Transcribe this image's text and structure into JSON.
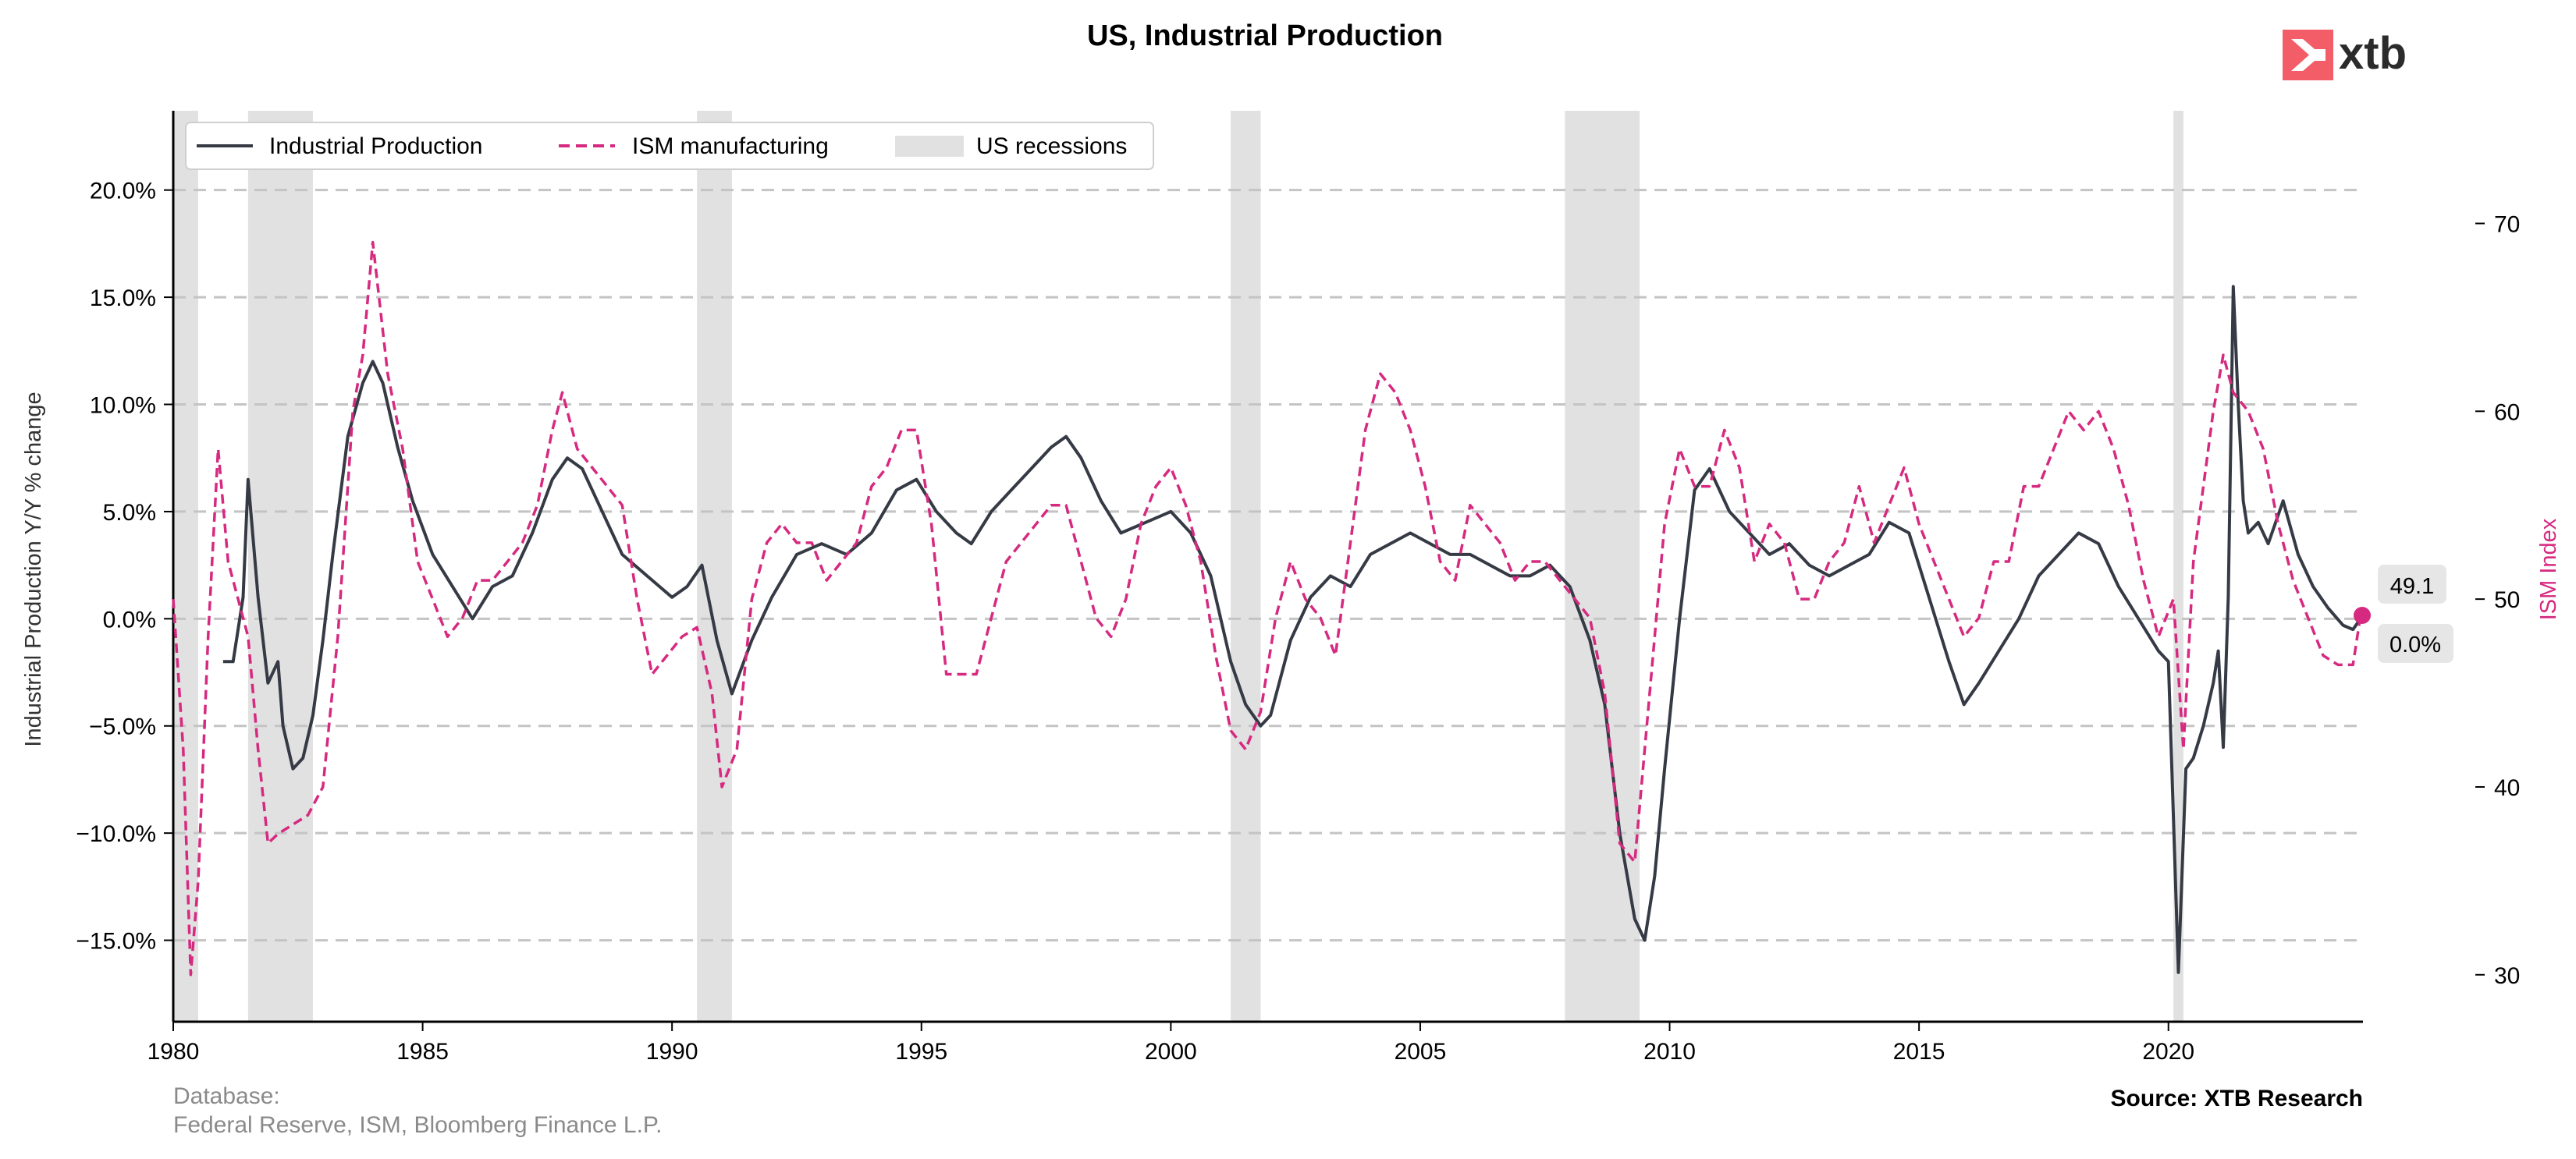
{
  "brand": {
    "logo_text": "xtb",
    "color": "#f25d67"
  },
  "colors": {
    "industrial": "#353a45",
    "ism": "#d62a80",
    "recession": "#e1e1e1",
    "grid": "#c4c4c4",
    "badge": "#e6e6e6"
  },
  "footer": {
    "database_label": "Database:",
    "database_sources": "Federal Reserve, ISM, Bloomberg Finance L.P.",
    "source": "Source: XTB Research"
  },
  "badges": {
    "ism_last": "49.1",
    "ip_last": "0.0%"
  },
  "chart_data": {
    "type": "line",
    "title": "US, Industrial Production",
    "ylabel_left": "Industrial Production Y/Y % change",
    "ylabel_right": "ISM Index",
    "xlim": [
      1980.0,
      2023.9
    ],
    "ylim_left": [
      -18.8,
      23.7
    ],
    "ylim_right": [
      27.5,
      76.0
    ],
    "x_ticks": [
      1980,
      1985,
      1990,
      1995,
      2000,
      2005,
      2010,
      2015,
      2020
    ],
    "x_tick_labels": [
      "1980",
      "1985",
      "1990",
      "1995",
      "2000",
      "2005",
      "2010",
      "2015",
      "2020"
    ],
    "y_left_ticks": [
      20,
      15,
      10,
      5,
      0,
      -5,
      -10,
      -15
    ],
    "y_left_tick_labels": [
      "20.0%",
      "15.0%",
      "10.0%",
      "5.0%",
      "0.0%",
      "−5.0%",
      "−10.0%",
      "−15.0%"
    ],
    "y_right_ticks": [
      70,
      60,
      50,
      40,
      30
    ],
    "y_right_tick_labels": [
      "70",
      "60",
      "50",
      "40",
      "30"
    ],
    "grid": "horizontal dashed",
    "legend_position": "top-left",
    "legend": [
      "Industrial Production",
      "ISM manufacturing",
      "US recessions"
    ],
    "recessions": [
      [
        1980.0,
        1980.5
      ],
      [
        1981.5,
        1982.8
      ],
      [
        1990.5,
        1991.2
      ],
      [
        2001.2,
        2001.8
      ],
      [
        2007.9,
        2009.4
      ],
      [
        2020.1,
        2020.3
      ]
    ],
    "series": [
      {
        "name": "Industrial Production",
        "axis": "left",
        "x": [
          1981.0,
          1981.2,
          1981.4,
          1981.5,
          1981.7,
          1981.9,
          1982.1,
          1982.2,
          1982.4,
          1982.6,
          1982.8,
          1983.0,
          1983.2,
          1983.5,
          1983.8,
          1984.0,
          1984.2,
          1984.5,
          1984.8,
          1985.2,
          1985.6,
          1986.0,
          1986.4,
          1986.8,
          1987.2,
          1987.6,
          1987.9,
          1988.2,
          1988.6,
          1989.0,
          1989.5,
          1990.0,
          1990.3,
          1990.6,
          1990.9,
          1991.2,
          1991.6,
          1992.0,
          1992.5,
          1993.0,
          1993.5,
          1994.0,
          1994.5,
          1994.9,
          1995.3,
          1995.7,
          1996.0,
          1996.4,
          1996.8,
          1997.2,
          1997.6,
          1997.9,
          1998.2,
          1998.6,
          1999.0,
          1999.5,
          2000.0,
          2000.4,
          2000.8,
          2001.2,
          2001.5,
          2001.8,
          2002.0,
          2002.4,
          2002.8,
          2003.2,
          2003.6,
          2004.0,
          2004.4,
          2004.8,
          2005.2,
          2005.6,
          2006.0,
          2006.4,
          2006.8,
          2007.2,
          2007.6,
          2008.0,
          2008.4,
          2008.7,
          2009.0,
          2009.3,
          2009.5,
          2009.7,
          2009.9,
          2010.2,
          2010.5,
          2010.8,
          2011.2,
          2011.6,
          2012.0,
          2012.4,
          2012.8,
          2013.2,
          2013.6,
          2014.0,
          2014.4,
          2014.8,
          2015.2,
          2015.6,
          2015.9,
          2016.2,
          2016.6,
          2017.0,
          2017.4,
          2017.8,
          2018.2,
          2018.6,
          2019.0,
          2019.4,
          2019.8,
          2020.0,
          2020.2,
          2020.35,
          2020.5,
          2020.7,
          2020.9,
          2021.0,
          2021.1,
          2021.2,
          2021.3,
          2021.4,
          2021.5,
          2021.6,
          2021.8,
          2022.0,
          2022.3,
          2022.6,
          2022.9,
          2023.2,
          2023.5,
          2023.7,
          2023.85
        ],
        "values": [
          -2.0,
          -2.0,
          1.0,
          6.5,
          1.0,
          -3.0,
          -2.0,
          -5.0,
          -7.0,
          -6.5,
          -4.5,
          -1.0,
          3.0,
          8.5,
          11.0,
          12.0,
          11.0,
          8.0,
          5.5,
          3.0,
          1.5,
          0.0,
          1.5,
          2.0,
          4.0,
          6.5,
          7.5,
          7.0,
          5.0,
          3.0,
          2.0,
          1.0,
          1.5,
          2.5,
          -1.0,
          -3.5,
          -1.0,
          1.0,
          3.0,
          3.5,
          3.0,
          4.0,
          6.0,
          6.5,
          5.0,
          4.0,
          3.5,
          5.0,
          6.0,
          7.0,
          8.0,
          8.5,
          7.5,
          5.5,
          4.0,
          4.5,
          5.0,
          4.0,
          2.0,
          -2.0,
          -4.0,
          -5.0,
          -4.5,
          -1.0,
          1.0,
          2.0,
          1.5,
          3.0,
          3.5,
          4.0,
          3.5,
          3.0,
          3.0,
          2.5,
          2.0,
          2.0,
          2.5,
          1.5,
          -1.0,
          -4.0,
          -10.0,
          -14.0,
          -15.0,
          -12.0,
          -7.0,
          0.0,
          6.0,
          7.0,
          5.0,
          4.0,
          3.0,
          3.5,
          2.5,
          2.0,
          2.5,
          3.0,
          4.5,
          4.0,
          1.0,
          -2.0,
          -4.0,
          -3.0,
          -1.5,
          0.0,
          2.0,
          3.0,
          4.0,
          3.5,
          1.5,
          0.0,
          -1.5,
          -2.0,
          -16.5,
          -7.0,
          -6.5,
          -5.0,
          -3.0,
          -1.5,
          -6.0,
          1.0,
          15.5,
          10.0,
          5.5,
          4.0,
          4.5,
          3.5,
          5.5,
          3.0,
          1.5,
          0.5,
          -0.3,
          -0.5,
          0.0
        ]
      },
      {
        "name": "ISM manufacturing",
        "axis": "right",
        "x": [
          1980.0,
          1980.2,
          1980.35,
          1980.5,
          1980.7,
          1980.9,
          1981.1,
          1981.3,
          1981.5,
          1981.7,
          1981.9,
          1982.1,
          1982.4,
          1982.7,
          1983.0,
          1983.3,
          1983.6,
          1983.8,
          1984.0,
          1984.3,
          1984.6,
          1984.9,
          1985.2,
          1985.5,
          1985.8,
          1986.1,
          1986.4,
          1986.7,
          1987.0,
          1987.3,
          1987.6,
          1987.8,
          1988.1,
          1988.4,
          1988.7,
          1989.0,
          1989.3,
          1989.6,
          1989.9,
          1990.2,
          1990.5,
          1990.8,
          1991.0,
          1991.3,
          1991.6,
          1991.9,
          1992.2,
          1992.5,
          1992.8,
          1993.1,
          1993.4,
          1993.7,
          1994.0,
          1994.3,
          1994.6,
          1994.9,
          1995.2,
          1995.5,
          1995.8,
          1996.1,
          1996.4,
          1996.7,
          1997.0,
          1997.3,
          1997.6,
          1997.9,
          1998.2,
          1998.5,
          1998.8,
          1999.1,
          1999.4,
          1999.7,
          2000.0,
          2000.3,
          2000.6,
          2000.9,
          2001.2,
          2001.5,
          2001.8,
          2002.1,
          2002.4,
          2002.7,
          2003.0,
          2003.3,
          2003.6,
          2003.9,
          2004.2,
          2004.5,
          2004.8,
          2005.1,
          2005.4,
          2005.7,
          2006.0,
          2006.3,
          2006.6,
          2006.9,
          2007.2,
          2007.5,
          2007.8,
          2008.1,
          2008.4,
          2008.7,
          2009.0,
          2009.3,
          2009.6,
          2009.9,
          2010.2,
          2010.5,
          2010.8,
          2011.1,
          2011.4,
          2011.7,
          2012.0,
          2012.3,
          2012.6,
          2012.9,
          2013.2,
          2013.5,
          2013.8,
          2014.1,
          2014.4,
          2014.7,
          2015.0,
          2015.3,
          2015.6,
          2015.9,
          2016.2,
          2016.5,
          2016.8,
          2017.1,
          2017.4,
          2017.7,
          2018.0,
          2018.3,
          2018.6,
          2018.9,
          2019.2,
          2019.5,
          2019.8,
          2020.1,
          2020.3,
          2020.5,
          2020.7,
          2020.9,
          2021.1,
          2021.3,
          2021.6,
          2021.9,
          2022.2,
          2022.5,
          2022.8,
          2023.1,
          2023.4,
          2023.7,
          2023.85
        ],
        "values": [
          50.0,
          42.0,
          30.0,
          35.0,
          48.0,
          58.0,
          52.0,
          50.0,
          48.0,
          42.0,
          37.0,
          37.5,
          38.0,
          38.5,
          40.0,
          48.0,
          60.0,
          63.0,
          69.0,
          62.0,
          58.0,
          52.0,
          50.0,
          48.0,
          49.0,
          51.0,
          51.0,
          52.0,
          53.0,
          55.0,
          59.0,
          61.0,
          58.0,
          57.0,
          56.0,
          55.0,
          50.0,
          46.0,
          47.0,
          48.0,
          48.5,
          45.0,
          40.0,
          42.0,
          50.0,
          53.0,
          54.0,
          53.0,
          53.0,
          51.0,
          52.0,
          53.0,
          56.0,
          57.0,
          59.0,
          59.0,
          54.0,
          46.0,
          46.0,
          46.0,
          49.0,
          52.0,
          53.0,
          54.0,
          55.0,
          55.0,
          52.0,
          49.0,
          48.0,
          50.0,
          54.0,
          56.0,
          57.0,
          55.0,
          52.0,
          47.0,
          43.0,
          42.0,
          44.0,
          49.0,
          52.0,
          50.0,
          49.0,
          47.0,
          53.0,
          59.0,
          62.0,
          61.0,
          59.0,
          56.0,
          52.0,
          51.0,
          55.0,
          54.0,
          53.0,
          51.0,
          52.0,
          52.0,
          51.0,
          50.0,
          49.0,
          45.0,
          37.0,
          36.0,
          45.0,
          54.0,
          58.0,
          56.0,
          56.0,
          59.0,
          57.0,
          52.0,
          54.0,
          53.0,
          50.0,
          50.0,
          52.0,
          53.0,
          56.0,
          53.0,
          55.0,
          57.0,
          54.0,
          52.0,
          50.0,
          48.0,
          49.0,
          52.0,
          52.0,
          56.0,
          56.0,
          58.0,
          60.0,
          59.0,
          60.0,
          58.0,
          55.0,
          51.0,
          48.0,
          50.0,
          42.0,
          52.0,
          56.0,
          60.0,
          63.0,
          61.0,
          60.0,
          58.0,
          54.0,
          51.0,
          49.0,
          47.0,
          46.5,
          46.5,
          49.1
        ]
      }
    ]
  }
}
